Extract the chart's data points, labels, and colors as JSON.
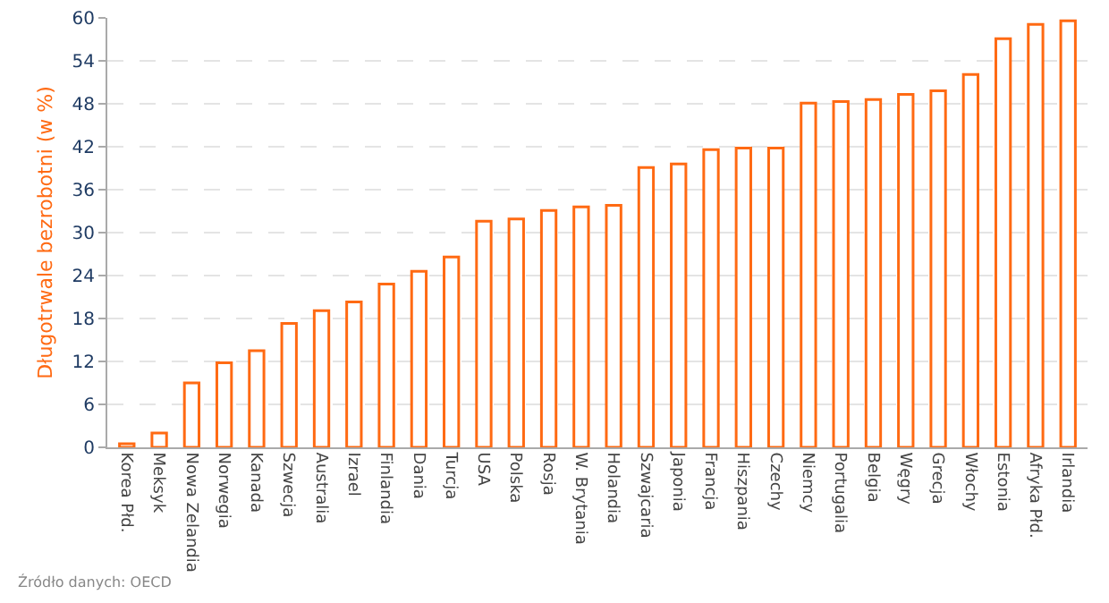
{
  "chart_data": {
    "type": "bar",
    "ylabel": "Długotrwale bezrobotni (w %)",
    "categories": [
      "Korea Płd.",
      "Meksyk",
      "Nowa Zelandia",
      "Norwegia",
      "Kanada",
      "Szwecja",
      "Australia",
      "Izrael",
      "Finlandia",
      "Dania",
      "Turcja",
      "USA",
      "Polska",
      "Rosja",
      "W. Brytania",
      "Holandia",
      "Szwajcaria",
      "Japonia",
      "Francja",
      "Hiszpania",
      "Czechy",
      "Niemcy",
      "Portugalia",
      "Belgia",
      "Węgry",
      "Grecja",
      "Włochy",
      "Estonia",
      "Afryka Płd.",
      "Irlandia"
    ],
    "values": [
      0.5,
      2.0,
      9.0,
      11.8,
      13.5,
      17.3,
      19.1,
      20.3,
      22.8,
      24.6,
      26.6,
      31.6,
      31.9,
      33.1,
      33.6,
      33.8,
      39.1,
      39.6,
      41.6,
      41.8,
      41.8,
      48.1,
      48.3,
      48.6,
      49.3,
      49.8,
      52.1,
      57.1,
      59.1,
      59.6
    ],
    "color": "#ff6a13",
    "ylim": [
      0,
      60
    ],
    "yticks": [
      0,
      6,
      12,
      18,
      24,
      30,
      36,
      42,
      48,
      54,
      60
    ],
    "grid": "y",
    "legend": false,
    "annotations": [
      "Źródło danych: OECD"
    ]
  }
}
